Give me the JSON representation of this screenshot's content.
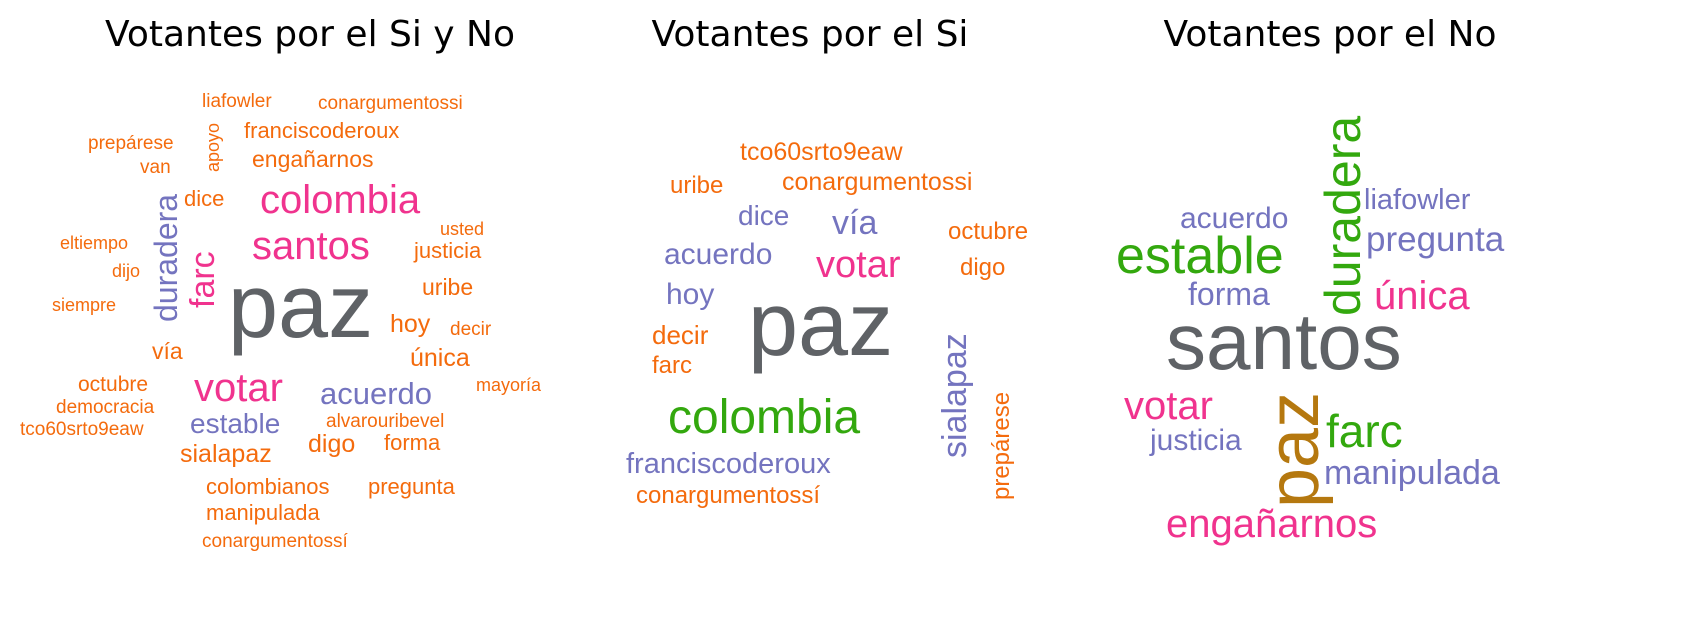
{
  "colors": {
    "gray": "#5f6266",
    "pink": "#f0338e",
    "orange": "#f46b0d",
    "purple": "#7474bf",
    "green": "#33a80e",
    "gold": "#b5780f"
  },
  "panels": [
    {
      "title": "Votantes por el Si y No",
      "words": [
        {
          "text": "paz",
          "color": "gray"
        },
        {
          "text": "colombia",
          "color": "pink"
        },
        {
          "text": "santos",
          "color": "pink"
        },
        {
          "text": "votar",
          "color": "pink"
        },
        {
          "text": "farc",
          "color": "pink"
        },
        {
          "text": "duradera",
          "color": "purple"
        },
        {
          "text": "acuerdo",
          "color": "purple"
        },
        {
          "text": "estable",
          "color": "purple"
        },
        {
          "text": "liafowler",
          "color": "orange"
        },
        {
          "text": "conargumentossi",
          "color": "orange"
        },
        {
          "text": "franciscoderoux",
          "color": "orange"
        },
        {
          "text": "prepárese",
          "color": "orange"
        },
        {
          "text": "apoyo",
          "color": "orange"
        },
        {
          "text": "van",
          "color": "orange"
        },
        {
          "text": "engañarnos",
          "color": "orange"
        },
        {
          "text": "dice",
          "color": "orange"
        },
        {
          "text": "usted",
          "color": "orange"
        },
        {
          "text": "eltiempo",
          "color": "orange"
        },
        {
          "text": "justicia",
          "color": "orange"
        },
        {
          "text": "dijo",
          "color": "orange"
        },
        {
          "text": "uribe",
          "color": "orange"
        },
        {
          "text": "siempre",
          "color": "orange"
        },
        {
          "text": "hoy",
          "color": "orange"
        },
        {
          "text": "decir",
          "color": "orange"
        },
        {
          "text": "vía",
          "color": "orange"
        },
        {
          "text": "única",
          "color": "orange"
        },
        {
          "text": "octubre",
          "color": "orange"
        },
        {
          "text": "mayoría",
          "color": "orange"
        },
        {
          "text": "democracia",
          "color": "orange"
        },
        {
          "text": "alvarouribevel",
          "color": "orange"
        },
        {
          "text": "tco60srto9eaw",
          "color": "orange"
        },
        {
          "text": "digo",
          "color": "orange"
        },
        {
          "text": "forma",
          "color": "orange"
        },
        {
          "text": "sialapaz",
          "color": "orange"
        },
        {
          "text": "colombianos",
          "color": "orange"
        },
        {
          "text": "pregunta",
          "color": "orange"
        },
        {
          "text": "manipulada",
          "color": "orange"
        },
        {
          "text": "conargumentossí",
          "color": "orange"
        }
      ]
    },
    {
      "title": "Votantes por el Si",
      "words": [
        {
          "text": "paz",
          "color": "gray"
        },
        {
          "text": "colombia",
          "color": "green"
        },
        {
          "text": "votar",
          "color": "pink"
        },
        {
          "text": "tco60srto9eaw",
          "color": "orange"
        },
        {
          "text": "uribe",
          "color": "orange"
        },
        {
          "text": "conargumentossi",
          "color": "orange"
        },
        {
          "text": "dice",
          "color": "purple"
        },
        {
          "text": "vía",
          "color": "purple"
        },
        {
          "text": "octubre",
          "color": "orange"
        },
        {
          "text": "acuerdo",
          "color": "purple"
        },
        {
          "text": "digo",
          "color": "orange"
        },
        {
          "text": "hoy",
          "color": "purple"
        },
        {
          "text": "sialapaz",
          "color": "purple"
        },
        {
          "text": "decir",
          "color": "orange"
        },
        {
          "text": "farc",
          "color": "orange"
        },
        {
          "text": "prepárese",
          "color": "orange"
        },
        {
          "text": "franciscoderoux",
          "color": "purple"
        },
        {
          "text": "conargumentossí",
          "color": "orange"
        }
      ]
    },
    {
      "title": "Votantes por el No",
      "words": [
        {
          "text": "santos",
          "color": "gray"
        },
        {
          "text": "paz",
          "color": "gold"
        },
        {
          "text": "duradera",
          "color": "green"
        },
        {
          "text": "estable",
          "color": "green"
        },
        {
          "text": "farc",
          "color": "green"
        },
        {
          "text": "liafowler",
          "color": "purple"
        },
        {
          "text": "acuerdo",
          "color": "purple"
        },
        {
          "text": "pregunta",
          "color": "purple"
        },
        {
          "text": "forma",
          "color": "purple"
        },
        {
          "text": "única",
          "color": "pink"
        },
        {
          "text": "votar",
          "color": "pink"
        },
        {
          "text": "justicia",
          "color": "purple"
        },
        {
          "text": "manipulada",
          "color": "purple"
        },
        {
          "text": "engañarnos",
          "color": "pink"
        }
      ]
    }
  ]
}
